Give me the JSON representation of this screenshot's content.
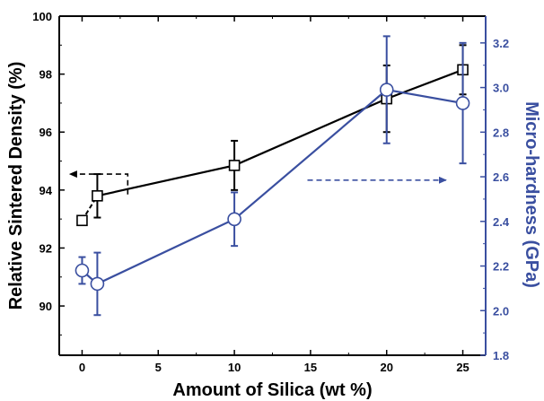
{
  "chart_data": {
    "type": "line",
    "title": "",
    "xlabel": "Amount of Silica (wt %)",
    "ylabel_left": "Relative Sintered Density (%)",
    "ylabel_right": "Micro-hardness (GPa)",
    "xlim": [
      -1.5,
      26.5
    ],
    "ylim_left": [
      88.3,
      100
    ],
    "ylim_right": [
      1.8,
      3.32
    ],
    "xticks": [
      "0",
      "5",
      "10",
      "15",
      "20",
      "25"
    ],
    "yticks_left": [
      "90",
      "92",
      "94",
      "96",
      "98",
      "100"
    ],
    "yticks_right": [
      "1.8",
      "2.0",
      "2.2",
      "2.4",
      "2.6",
      "2.8",
      "3.0",
      "3.2"
    ],
    "grid": false,
    "colors": {
      "density": "#000000",
      "hardness": "#3a4fa0"
    },
    "series": [
      {
        "key": "density",
        "axis": "left",
        "marker": "square",
        "x": [
          0,
          1,
          10,
          20,
          25
        ],
        "y": [
          92.95,
          93.8,
          94.85,
          97.15,
          98.15
        ],
        "err": [
          0.12,
          0.75,
          0.85,
          1.15,
          0.85
        ]
      },
      {
        "key": "hardness",
        "axis": "right",
        "marker": "circle",
        "x": [
          0,
          1,
          10,
          20,
          25
        ],
        "y": [
          2.18,
          2.12,
          2.41,
          2.99,
          2.93
        ],
        "err": [
          0.06,
          0.14,
          0.12,
          0.24,
          0.27
        ]
      }
    ],
    "annotations": [
      {
        "kind": "arrow",
        "points_to": "left-axis",
        "from": [
          3.0,
          93.85
        ],
        "via": [
          3.0,
          94.55
        ],
        "to": [
          -0.8,
          94.55
        ],
        "axis": "left"
      },
      {
        "kind": "arrow",
        "points_to": "right-axis",
        "from": [
          14.8,
          2.585
        ],
        "to": [
          23.9,
          2.585
        ],
        "axis": "right"
      }
    ]
  }
}
